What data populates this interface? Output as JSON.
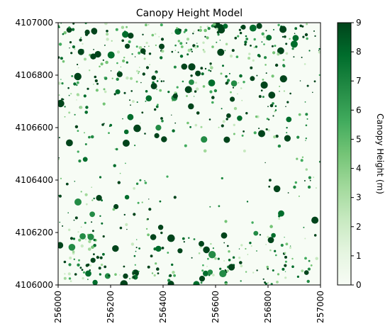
{
  "chart_data": {
    "type": "heatmap",
    "title": "Canopy Height Model",
    "xlabel": "",
    "ylabel": "",
    "xlim": [
      256000,
      257000
    ],
    "ylim": [
      4106000,
      4107000
    ],
    "x_ticks": [
      "256000",
      "256200",
      "256400",
      "256600",
      "256800",
      "257000"
    ],
    "y_ticks": [
      "4107000",
      "4106800",
      "4106600",
      "4106400",
      "4106200",
      "4106000"
    ],
    "colorbar": {
      "label": "Canopy Height (m)",
      "range": [
        0,
        9
      ],
      "ticks": [
        "0",
        "1",
        "2",
        "3",
        "4",
        "5",
        "6",
        "7",
        "8",
        "9"
      ],
      "colormap": "Greens"
    },
    "regions": [
      {
        "description_density": "high",
        "zone": "top band"
      },
      {
        "description_density": "low",
        "zone": "center-right open area"
      },
      {
        "description_density": "high",
        "zone": "bottom band"
      }
    ]
  }
}
